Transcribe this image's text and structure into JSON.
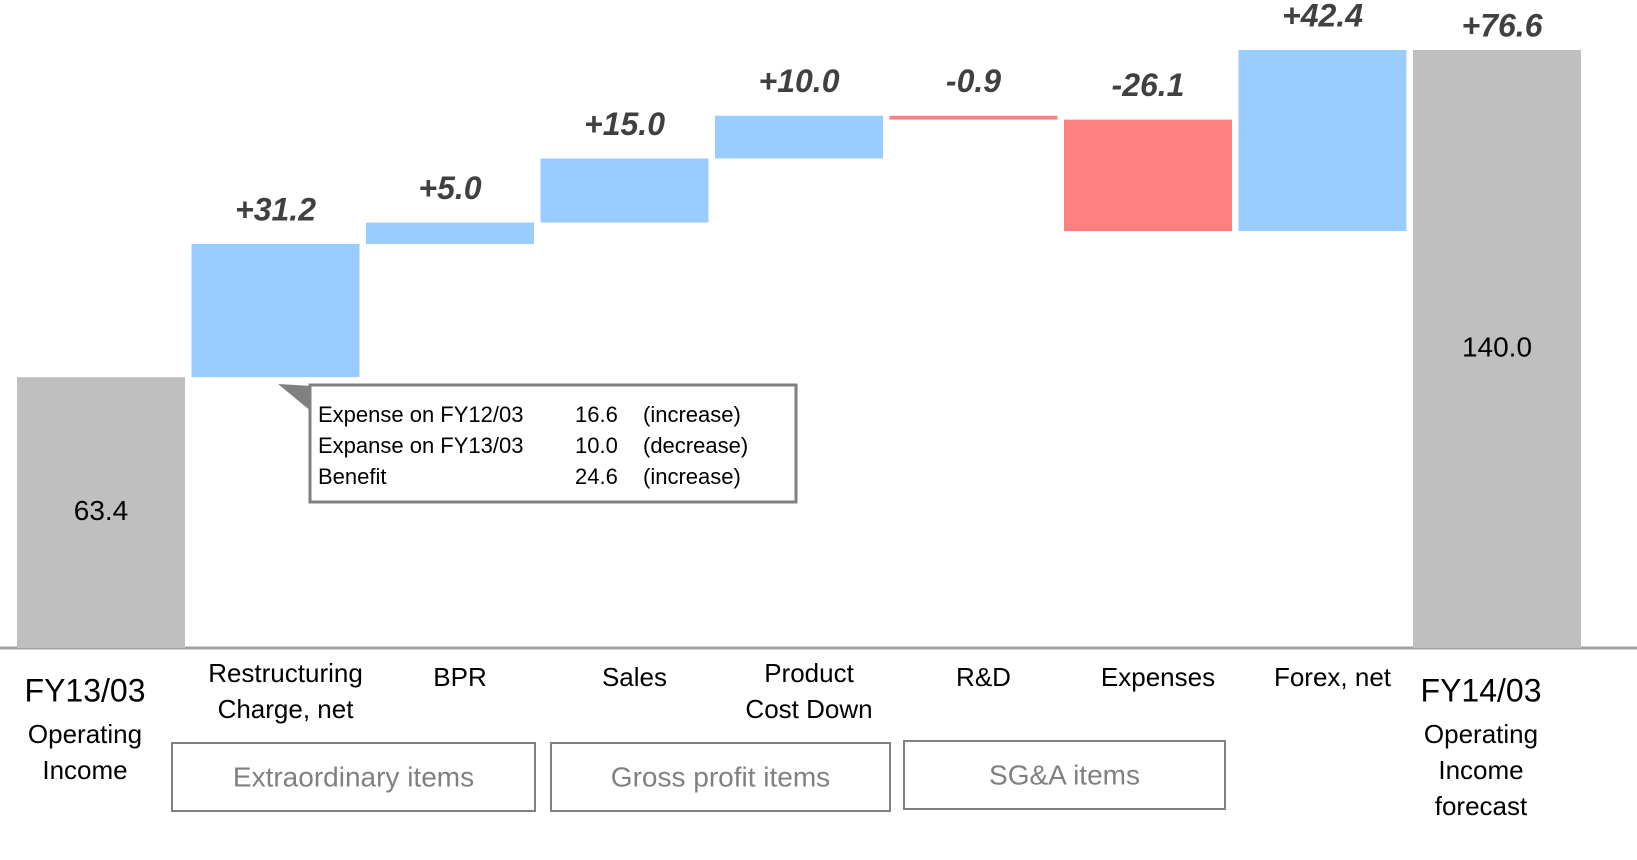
{
  "chart_data": {
    "type": "waterfall",
    "categories": [
      [
        "FY13/03",
        "Operating",
        "Income"
      ],
      [
        "Restructuring",
        "Charge, net"
      ],
      [
        "BPR"
      ],
      [
        "Sales"
      ],
      [
        "Product",
        "Cost Down"
      ],
      [
        "R&D"
      ],
      [
        "Expenses"
      ],
      [
        "Forex, net"
      ],
      [
        "FY14/03",
        "Operating",
        "Income",
        "forecast"
      ]
    ],
    "values": [
      63.4,
      31.2,
      5.0,
      15.0,
      10.0,
      -0.9,
      -26.1,
      42.4,
      140.0
    ],
    "value_labels": [
      "63.4",
      "+31.2",
      "+5.0",
      "+15.0",
      "+10.0",
      "-0.9",
      "-26.1",
      "+42.4",
      "140.0"
    ],
    "colors": {
      "total": "#bfbfbf",
      "increase": "#99ccff",
      "decrease": "#ff8080"
    },
    "total_change": {
      "value": 76.6,
      "label": "+76.6"
    },
    "groups": [
      "Extraordinary items",
      "Gross profit items",
      "SG&A items"
    ],
    "callout": {
      "rows": [
        [
          "Expense on FY12/03",
          "16.6",
          "(increase)"
        ],
        [
          "Expanse on FY13/03",
          "10.0",
          "(decrease)"
        ],
        [
          "Benefit",
          "24.6",
          "(increase)"
        ]
      ]
    }
  }
}
